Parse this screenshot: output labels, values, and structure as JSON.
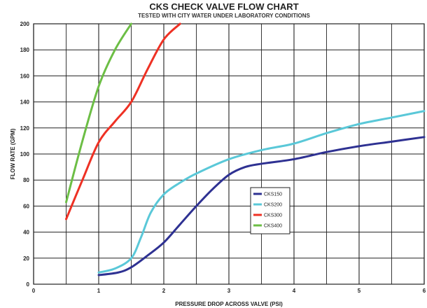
{
  "chart_data": {
    "type": "line",
    "title": "CKS CHECK VALVE FLOW CHART",
    "subtitle": "TESTED WITH CITY WATER UNDER LABORATORY CONDITIONS",
    "xlabel": "PRESSURE DROP ACROSS VALVE  (PSI)",
    "ylabel": "FLOW RATE (GPM)",
    "xlim": [
      0,
      6
    ],
    "ylim": [
      0,
      200
    ],
    "x_ticks": [
      0,
      1,
      2,
      3,
      4,
      5,
      6
    ],
    "x_tick_labels": [
      "0",
      "1",
      "2",
      "3",
      "4",
      "5",
      "6"
    ],
    "x_minor_step": 0.5,
    "y_ticks": [
      0,
      20,
      40,
      60,
      80,
      100,
      120,
      140,
      160,
      180,
      200
    ],
    "y_tick_labels": [
      "0",
      "20",
      "40",
      "60",
      "80",
      "100",
      "120",
      "140",
      "160",
      "180",
      "200"
    ],
    "grid": true,
    "legend_position": "center",
    "series": [
      {
        "name": "CKS150",
        "color": "#2e3192",
        "points": [
          [
            1.0,
            7
          ],
          [
            1.3,
            9
          ],
          [
            1.5,
            13
          ],
          [
            1.75,
            22
          ],
          [
            2.0,
            32
          ],
          [
            2.25,
            46
          ],
          [
            2.5,
            60
          ],
          [
            2.75,
            73
          ],
          [
            3.0,
            84
          ],
          [
            3.25,
            90
          ],
          [
            3.5,
            92.5
          ],
          [
            4.0,
            96
          ],
          [
            4.5,
            101.5
          ],
          [
            5.0,
            106
          ],
          [
            5.5,
            109.5
          ],
          [
            6.0,
            113
          ]
        ]
      },
      {
        "name": "CKS200",
        "color": "#5ac8d8",
        "points": [
          [
            1.0,
            9
          ],
          [
            1.25,
            12
          ],
          [
            1.5,
            20
          ],
          [
            1.65,
            36
          ],
          [
            1.8,
            55
          ],
          [
            2.0,
            69
          ],
          [
            2.25,
            78
          ],
          [
            2.5,
            85
          ],
          [
            3.0,
            96
          ],
          [
            3.5,
            103
          ],
          [
            4.0,
            108
          ],
          [
            4.5,
            116
          ],
          [
            5.0,
            123
          ],
          [
            5.5,
            128
          ],
          [
            6.0,
            133
          ]
        ]
      },
      {
        "name": "CKS300",
        "color": "#ee3124",
        "points": [
          [
            0.5,
            50
          ],
          [
            0.75,
            80
          ],
          [
            1.0,
            109
          ],
          [
            1.25,
            125
          ],
          [
            1.5,
            140
          ],
          [
            1.75,
            165
          ],
          [
            2.0,
            188
          ],
          [
            2.25,
            200
          ]
        ]
      },
      {
        "name": "CKS400",
        "color": "#6cbe45",
        "points": [
          [
            0.5,
            63
          ],
          [
            0.75,
            110
          ],
          [
            1.0,
            152
          ],
          [
            1.25,
            180
          ],
          [
            1.5,
            200
          ]
        ]
      }
    ]
  }
}
